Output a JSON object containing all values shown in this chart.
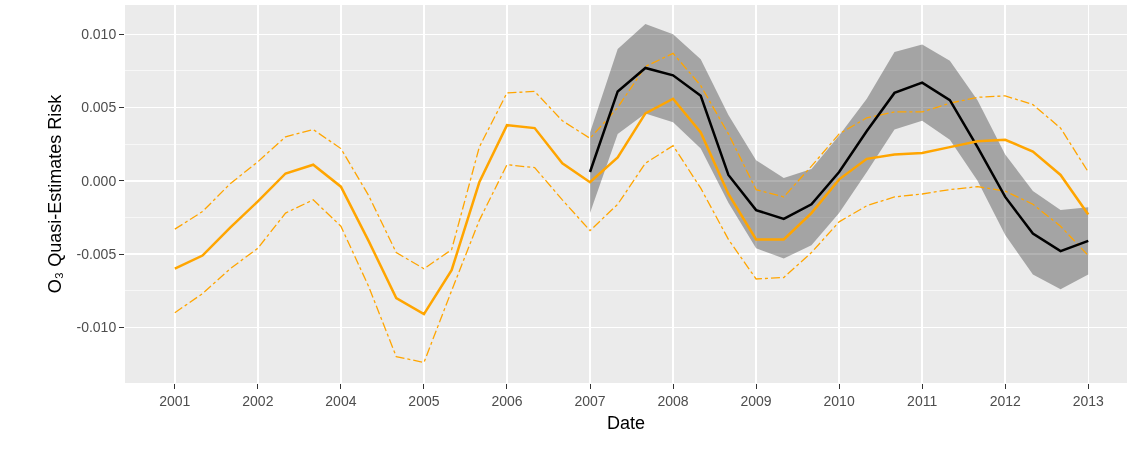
{
  "chart_data": {
    "type": "line",
    "xlabel": "Date",
    "ylabel": "O₃ Quasi-Estimates Risk",
    "categories": [
      "2001",
      null,
      null,
      "2002",
      null,
      null,
      "2004",
      null,
      null,
      "2005",
      null,
      null,
      "2006",
      null,
      null,
      "2007",
      null,
      null,
      "2008",
      null,
      null,
      "2009",
      null,
      null,
      "2010",
      null,
      null,
      "2011",
      null,
      null,
      "2012",
      null,
      null,
      "2013"
    ],
    "ylim": [
      -0.0138,
      0.012
    ],
    "yticks": [
      {
        "value": -0.01,
        "label": "-0.010"
      },
      {
        "value": -0.005,
        "label": "-0.005"
      },
      {
        "value": 0,
        "label": "0.000"
      },
      {
        "value": 0.005,
        "label": "0.005"
      },
      {
        "value": 0.01,
        "label": "0.010"
      }
    ],
    "grid": true,
    "marker": "none",
    "series": [
      {
        "color": "#ffa500",
        "line_style": "dashed",
        "values": [
          -0.0033,
          -0.0021,
          -0.0002,
          0.0013,
          0.003,
          0.0035,
          0.0022,
          -0.001,
          -0.0049,
          -0.006,
          -0.0047,
          0.0023,
          0.006,
          0.0061,
          0.0041,
          0.0029,
          0.005,
          0.0078,
          0.0087,
          0.0065,
          0.0032,
          -0.0006,
          -0.0011,
          0.001,
          0.0032,
          0.0043,
          0.0047,
          0.0047,
          0.0053,
          0.0057,
          0.0058,
          0.0052,
          0.0036,
          0.0006
        ]
      },
      {
        "color": "#ffa500",
        "line_style": "dashed",
        "values": [
          -0.009,
          -0.0077,
          -0.006,
          -0.0046,
          -0.0022,
          -0.0013,
          -0.0031,
          -0.0072,
          -0.012,
          -0.0124,
          -0.0075,
          -0.0027,
          0.0011,
          0.0009,
          -0.0013,
          -0.0034,
          -0.0016,
          0.0012,
          0.0024,
          -0.0005,
          -0.004,
          -0.0067,
          -0.0066,
          -0.0049,
          -0.0028,
          -0.0017,
          -0.0011,
          -0.0009,
          -0.0006,
          -0.0004,
          -0.0007,
          -0.0016,
          -0.0031,
          -0.0051
        ]
      },
      {
        "color": "#000000",
        "line_style": "solid",
        "values": [
          null,
          null,
          null,
          null,
          null,
          null,
          null,
          null,
          null,
          null,
          null,
          null,
          null,
          null,
          null,
          0.0006,
          0.0061,
          0.0077,
          0.0072,
          0.0058,
          0.0004,
          -0.002,
          -0.0026,
          -0.0016,
          0.0006,
          0.0034,
          0.006,
          0.0067,
          0.0055,
          0.0023,
          -0.0011,
          -0.0036,
          -0.0048,
          -0.0041
        ],
        "lower": [
          null,
          null,
          null,
          null,
          null,
          null,
          null,
          null,
          null,
          null,
          null,
          null,
          null,
          null,
          null,
          -0.0022,
          0.0032,
          0.0046,
          0.004,
          0.0022,
          -0.0015,
          -0.0046,
          -0.0053,
          -0.0044,
          -0.0022,
          0.0006,
          0.0035,
          0.0041,
          0.0028,
          0.0,
          -0.0037,
          -0.0064,
          -0.0074,
          -0.0064
        ],
        "upper": [
          null,
          null,
          null,
          null,
          null,
          null,
          null,
          null,
          null,
          null,
          null,
          null,
          null,
          null,
          null,
          0.0033,
          0.009,
          0.0107,
          0.01,
          0.0083,
          0.0045,
          0.0014,
          0.0002,
          0.0008,
          0.0031,
          0.0056,
          0.0088,
          0.0093,
          0.0082,
          0.0055,
          0.0018,
          -0.0007,
          -0.002,
          -0.0018
        ]
      },
      {
        "color": "#ffa500",
        "line_style": "solid",
        "values": [
          -0.006,
          -0.0051,
          -0.0032,
          -0.0014,
          0.0005,
          0.0011,
          -0.0004,
          -0.0041,
          -0.008,
          -0.0091,
          -0.0061,
          -0.0001,
          0.0038,
          0.0036,
          0.0012,
          -0.0001,
          0.0016,
          0.0046,
          0.0056,
          0.0033,
          -0.0009,
          -0.004,
          -0.004,
          -0.0022,
          0.0001,
          0.0015,
          0.0018,
          0.0019,
          0.0023,
          0.0027,
          0.0028,
          0.002,
          0.0004,
          -0.0023
        ]
      }
    ]
  }
}
